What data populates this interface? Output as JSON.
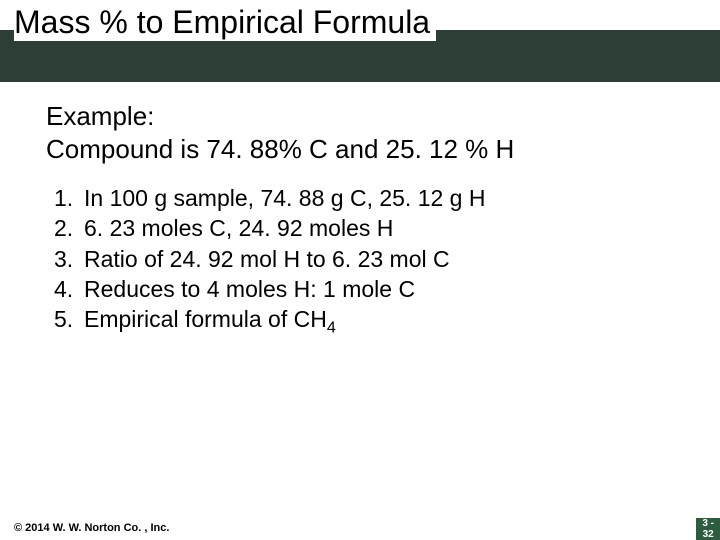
{
  "header": {
    "title": "Mass % to Empirical Formula",
    "bg_color": "#2d3e37",
    "title_fontsize": 32
  },
  "content": {
    "example_label": "Example:",
    "example_text": "Compound is 74. 88% C and 25. 12 % H",
    "steps": [
      {
        "n": "1.",
        "text": "In 100 g sample, 74. 88 g C, 25. 12 g H"
      },
      {
        "n": "2.",
        "text": "6. 23 moles C, 24. 92 moles H"
      },
      {
        "n": "3.",
        "text": "Ratio of 24. 92 mol H to 6. 23 mol C"
      },
      {
        "n": "4.",
        "text": "Reduces to 4 moles H: 1 mole C"
      },
      {
        "n": "5.",
        "text": "Empirical formula of CH",
        "sub": "4"
      }
    ],
    "body_fontsize": 23,
    "example_fontsize": 26
  },
  "footer": {
    "copyright": "© 2014 W. W. Norton Co. , Inc.",
    "page_chapter": "3 -",
    "page_number": "32",
    "badge_bg": "#2d5c3f"
  },
  "colors": {
    "background": "#ffffff",
    "text": "#000000"
  }
}
